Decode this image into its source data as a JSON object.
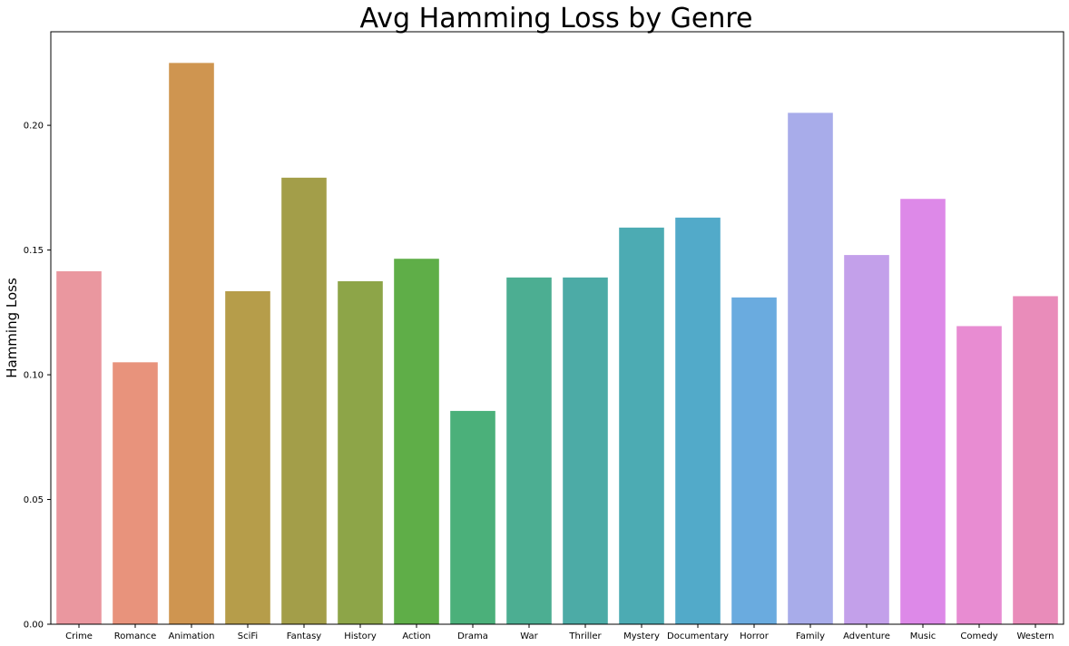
{
  "chart_data": {
    "type": "bar",
    "title": "Avg Hamming Loss by Genre",
    "xlabel": "",
    "ylabel": "Hamming Loss",
    "ylim": [
      0,
      0.2375
    ],
    "yticks": [
      "0.00",
      "0.05",
      "0.10",
      "0.15",
      "0.20"
    ],
    "ytick_values": [
      0,
      0.05,
      0.1,
      0.15,
      0.2
    ],
    "grid": false,
    "categories": [
      "Crime",
      "Romance",
      "Animation",
      "SciFi",
      "Fantasy",
      "History",
      "Action",
      "Drama",
      "War",
      "Thriller",
      "Mystery",
      "Documentary",
      "Horror",
      "Family",
      "Adventure",
      "Music",
      "Comedy",
      "Western"
    ],
    "values": [
      0.1415,
      0.105,
      0.225,
      0.1335,
      0.179,
      0.1375,
      0.1465,
      0.0855,
      0.139,
      0.139,
      0.159,
      0.163,
      0.131,
      0.205,
      0.148,
      0.1705,
      0.1195,
      0.1315
    ],
    "colors": [
      "#ea979f",
      "#e8937c",
      "#cf9550",
      "#b69d4a",
      "#a39e49",
      "#8da548",
      "#5fae48",
      "#4bb07a",
      "#4cae92",
      "#4caba6",
      "#4cabb3",
      "#52aac9",
      "#6aabdf",
      "#a8acea",
      "#c3a0ea",
      "#dd89e8",
      "#e88cd2",
      "#e98cba"
    ]
  }
}
